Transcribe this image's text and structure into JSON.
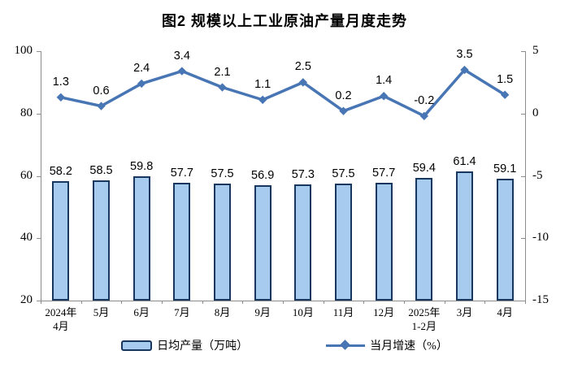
{
  "chart_data": {
    "type": "bar",
    "title": "图2 规模以上工业原油产量月度走势",
    "categories": [
      [
        "2024年",
        "4月"
      ],
      [
        "5月"
      ],
      [
        "6月"
      ],
      [
        "7月"
      ],
      [
        "8月"
      ],
      [
        "9月"
      ],
      [
        "10月"
      ],
      [
        "11月"
      ],
      [
        "12月"
      ],
      [
        "2025年",
        "1-2月"
      ],
      [
        "3月"
      ],
      [
        "4月"
      ]
    ],
    "series": [
      {
        "name": "日均产量（万吨）",
        "type": "bar",
        "axis": "left",
        "values": [
          58.2,
          58.5,
          59.8,
          57.7,
          57.5,
          56.9,
          57.3,
          57.5,
          57.7,
          59.4,
          61.4,
          59.1
        ]
      },
      {
        "name": "当月增速（%）",
        "type": "line",
        "axis": "right",
        "values": [
          1.3,
          0.6,
          2.4,
          3.4,
          2.1,
          1.1,
          2.5,
          0.2,
          1.4,
          -0.2,
          3.5,
          1.5
        ]
      }
    ],
    "left_axis": {
      "min": 20,
      "max": 100,
      "ticks": [
        100,
        80,
        60,
        40,
        20
      ]
    },
    "right_axis": {
      "min": -15,
      "max": 5,
      "ticks": [
        5,
        0,
        -5,
        -10,
        -15
      ]
    },
    "grid": false,
    "legend_position": "bottom",
    "colors": {
      "bar_fill": "#a7cbee",
      "bar_border": "#17375e",
      "line": "#4876b4",
      "axis": "#8c8c8c",
      "text": "#000000"
    }
  },
  "legend": {
    "bar_label": "日均产量（万吨）",
    "line_label": "当月增速（%）"
  }
}
